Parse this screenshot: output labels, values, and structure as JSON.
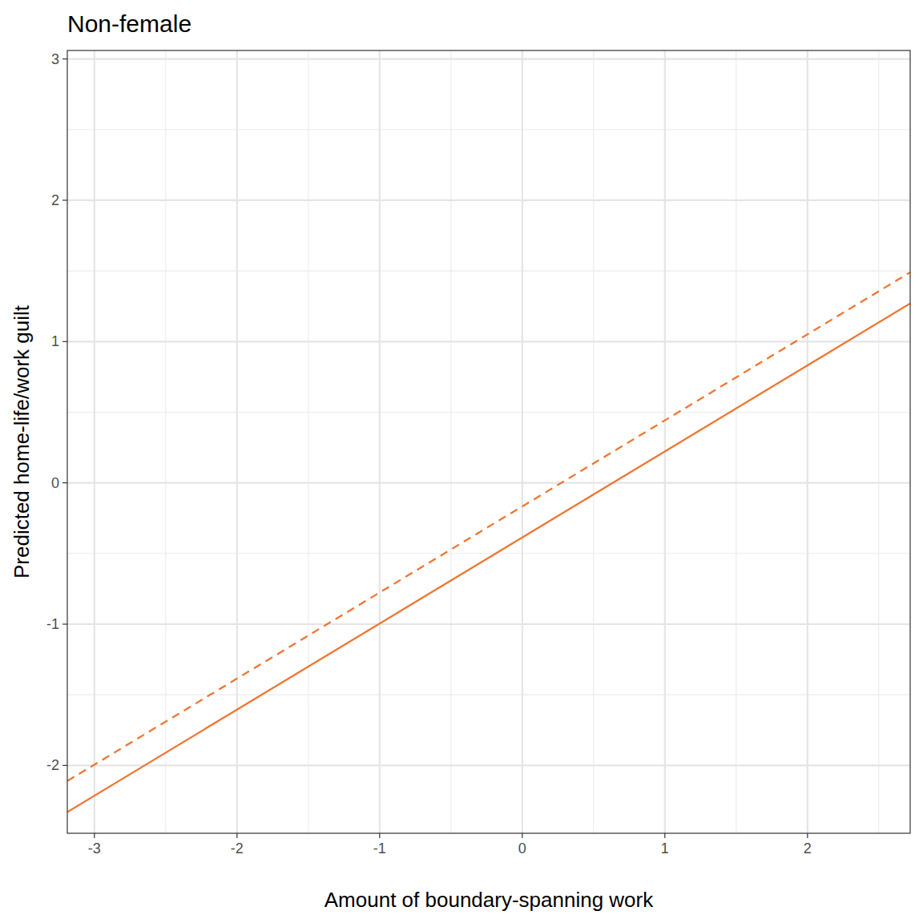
{
  "chart_data": {
    "type": "line",
    "title": "Non-female",
    "x_label": "Amount of boundary-spanning work",
    "y_label": "Predicted home-life/work guilt",
    "x": [
      -3.19,
      2.72
    ],
    "series": [
      {
        "color": "#ee7733",
        "line_style": "solid",
        "values": [
          -2.33,
          1.27
        ]
      },
      {
        "color": "#ee7733",
        "line_style": "dashed",
        "values": [
          -2.11,
          1.49
        ]
      }
    ],
    "xlim": [
      -3.19,
      2.72
    ],
    "ylim": [
      -2.48,
      3.06
    ],
    "xticks": [
      -3,
      -2,
      -1,
      0,
      1,
      2
    ],
    "yticks": [
      -2,
      -1,
      0,
      1,
      2,
      3
    ],
    "grid": true
  }
}
